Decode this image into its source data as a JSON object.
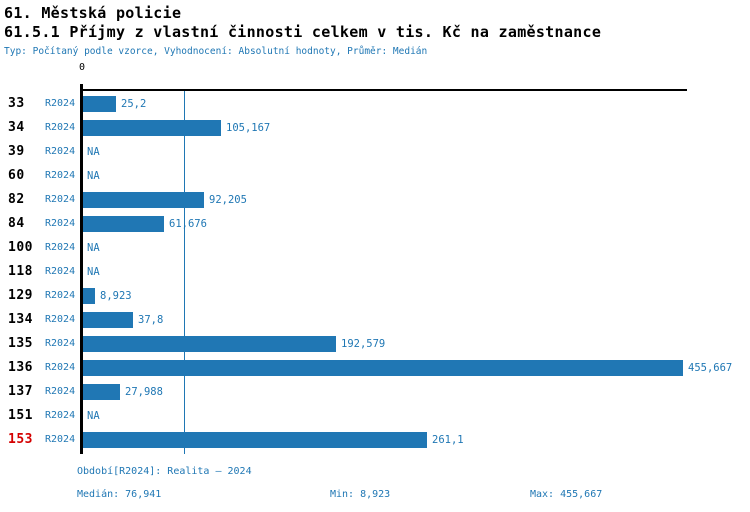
{
  "header": {
    "title": "61. Městská policie",
    "subtitle": "61.5.1 Příjmy z vlastní činnosti celkem v tis. Kč na zaměstnance",
    "meta": "Typ: Počítaný podle vzorce, Vyhodnocení: Absolutní hodnoty, Průměr: Medián"
  },
  "chart_data": {
    "type": "bar",
    "orientation": "horizontal",
    "title": "61.5.1 Příjmy z vlastní činnosti celkem v tis. Kč na zaměstnance",
    "axis_origin_label": "0",
    "xlim": [
      0,
      459
    ],
    "grid": false,
    "categories": [
      "33",
      "34",
      "39",
      "60",
      "82",
      "84",
      "100",
      "118",
      "129",
      "134",
      "135",
      "136",
      "137",
      "151",
      "153"
    ],
    "period_label": "R2024",
    "na_label": "NA",
    "highlighted_category": "153",
    "median_value": 76.941,
    "series": [
      {
        "name": "R2024",
        "values": [
          25.2,
          105.167,
          null,
          null,
          92.205,
          61.676,
          null,
          null,
          8.923,
          37.8,
          192.579,
          455.667,
          27.988,
          null,
          261.1
        ],
        "value_labels": [
          "25,2",
          "105,167",
          "NA",
          "NA",
          "92,205",
          "61,676",
          "NA",
          "NA",
          "8,923",
          "37,8",
          "192,579",
          "455,667",
          "27,988",
          "NA",
          "261,1"
        ]
      }
    ],
    "stats": {
      "median": "76,941",
      "min": "8,923",
      "max": "455,667"
    }
  },
  "footer": {
    "period_info": "Období[R2024]: Realita – 2024",
    "median": "Medián: 76,941",
    "min": "Min: 8,923",
    "max": "Max: 455,667"
  },
  "colors": {
    "bar": "#2077b4",
    "text": "#1f77b4",
    "highlight": "#d40000",
    "axis": "#000000"
  }
}
